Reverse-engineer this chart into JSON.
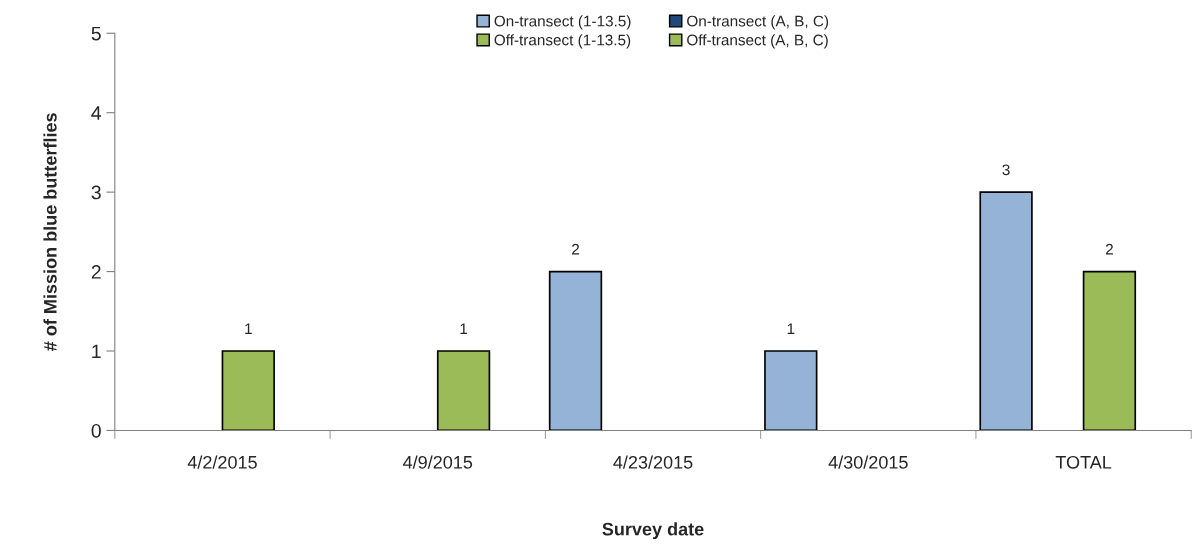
{
  "chart_data": {
    "type": "bar",
    "xlabel": "Survey date",
    "ylabel": "# of Mission blue butterflies",
    "categories": [
      "4/2/2015",
      "4/9/2015",
      "4/23/2015",
      "4/30/2015",
      "TOTAL"
    ],
    "series": [
      {
        "name": "On-transect (1-13.5)",
        "color": "#95b3d7",
        "values": [
          null,
          null,
          2,
          1,
          3
        ]
      },
      {
        "name": "On-transect (A, B, C)",
        "color": "#1f497d",
        "values": [
          null,
          null,
          null,
          null,
          null
        ]
      },
      {
        "name": "Off-transect (1-13.5)",
        "color": "#9bbb59",
        "values": [
          1,
          1,
          null,
          null,
          2
        ]
      },
      {
        "name": "Off-transect (A, B, C)",
        "color": "#9bbb59",
        "values": [
          null,
          null,
          null,
          null,
          null
        ]
      }
    ],
    "ylim": [
      0,
      5
    ],
    "yticks": [
      0,
      1,
      2,
      3,
      4,
      5
    ],
    "grid": false,
    "legend": "top",
    "data_labels": true
  }
}
